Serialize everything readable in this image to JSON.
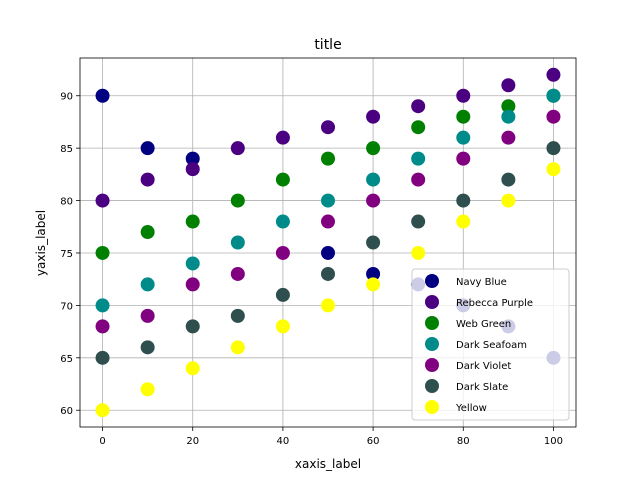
{
  "chart_data": {
    "type": "scatter",
    "title": "title",
    "xlabel": "xaxis_label",
    "ylabel": "yaxis_label",
    "xlim": [
      -5,
      105
    ],
    "ylim": [
      58.4,
      93.6
    ],
    "xticks": [
      0,
      20,
      40,
      60,
      80,
      100
    ],
    "yticks": [
      60,
      65,
      70,
      75,
      80,
      85,
      90
    ],
    "grid": true,
    "legend_position": "lower-right",
    "x": [
      0,
      10,
      20,
      30,
      40,
      50,
      60,
      70,
      80,
      90,
      100
    ],
    "series": [
      {
        "name": "Navy Blue",
        "color": "#000080",
        "values": [
          90,
          85,
          84,
          null,
          null,
          75,
          73,
          72,
          70,
          68,
          65
        ]
      },
      {
        "name": "Rebecca Purple",
        "color": "#4b0082",
        "values": [
          80,
          82,
          83,
          85,
          86,
          87,
          88,
          89,
          90,
          91,
          92
        ]
      },
      {
        "name": "Web Green",
        "color": "#008000",
        "values": [
          75,
          77,
          78,
          80,
          82,
          84,
          85,
          87,
          88,
          89,
          90
        ]
      },
      {
        "name": "Dark Seafoam",
        "color": "#008b8b",
        "values": [
          70,
          72,
          74,
          76,
          78,
          80,
          82,
          84,
          86,
          88,
          90
        ]
      },
      {
        "name": "Dark Violet",
        "color": "#800080",
        "values": [
          68,
          69,
          72,
          73,
          75,
          78,
          80,
          82,
          84,
          86,
          88
        ]
      },
      {
        "name": "Dark Slate",
        "color": "#2f4f4f",
        "values": [
          65,
          66,
          68,
          69,
          71,
          73,
          76,
          78,
          80,
          82,
          85
        ]
      },
      {
        "name": "Yellow",
        "color": "#ffff00",
        "values": [
          60,
          62,
          64,
          66,
          68,
          70,
          72,
          75,
          78,
          80,
          83
        ]
      }
    ]
  }
}
